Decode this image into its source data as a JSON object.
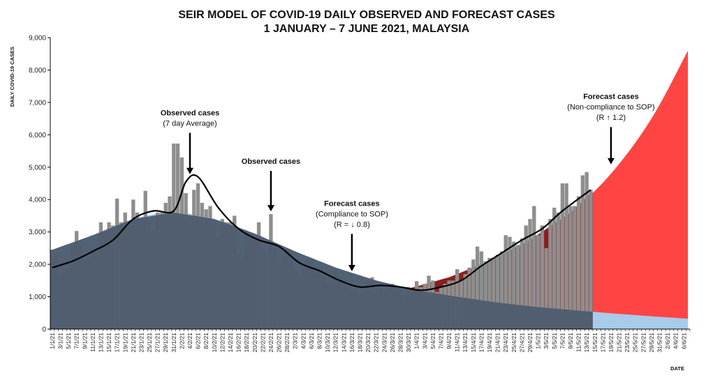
{
  "chart_data": {
    "type": "bar",
    "title_line1": "SEIR MODEL OF COVID-19 DAILY OBSERVED AND FORECAST CASES",
    "title_line2": "1 JANUARY  – 7 JUNE 2021, MALAYSIA",
    "ylabel": "DAILY COVID-19 CASES",
    "xlabel": "DATE",
    "ylim": [
      0,
      9000
    ],
    "yticks": [
      "0",
      "1,000",
      "2,000",
      "3,000",
      "4,000",
      "5,000",
      "6,000",
      "7,000",
      "8,000",
      "9,000"
    ],
    "x_start": "2021-01-01",
    "x_end": "2021-06-07",
    "x_tick_labels": [
      "1/1/21",
      "3/1/21",
      "5/1/21",
      "7/1/21",
      "9/1/21",
      "11/1/21",
      "13/1/21",
      "15/1/21",
      "17/1/21",
      "19/1/21",
      "21/1/21",
      "23/1/21",
      "25/1/21",
      "27/1/21",
      "29/1/21",
      "31/1/21",
      "2/2/21",
      "4/2/21",
      "6/2/21",
      "8/2/21",
      "10/2/21",
      "12/2/21",
      "14/2/21",
      "16/2/21",
      "18/2/21",
      "20/2/21",
      "22/2/21",
      "24/2/21",
      "26/2/21",
      "28/2/21",
      "2/3/21",
      "4/3/21",
      "6/3/21",
      "8/3/21",
      "10/3/21",
      "12/3/21",
      "14/3/21",
      "16/3/21",
      "18/3/21",
      "20/3/21",
      "22/3/21",
      "24/3/21",
      "26/3/21",
      "28/3/21",
      "30/3/21",
      "1/4/21",
      "3/4/21",
      "5/4/21",
      "7/4/21",
      "9/4/21",
      "11/4/21",
      "13/4/21",
      "15/4/21",
      "17/4/21",
      "19/4/21",
      "21/4/21",
      "23/4/21",
      "25/4/21",
      "27/4/21",
      "29/4/21",
      "1/5/21",
      "3/5/21",
      "5/5/21",
      "7/5/21",
      "9/5/21",
      "11/5/21",
      "13/5/21",
      "15/5/21",
      "17/5/21",
      "19/5/21",
      "21/5/21",
      "23/5/21",
      "25/5/21",
      "27/5/21",
      "29/5/21",
      "31/5/21",
      "2/6/21",
      "4/6/21",
      "6/6/21"
    ],
    "last_observed_date": "2021-05-14",
    "observed_daily": [
      {
        "x": "2021-01-01",
        "y": 2060
      },
      {
        "x": "2021-01-02",
        "y": 2300
      },
      {
        "x": "2021-01-03",
        "y": 1700
      },
      {
        "x": "2021-01-04",
        "y": 1740
      },
      {
        "x": "2021-01-05",
        "y": 1870
      },
      {
        "x": "2021-01-06",
        "y": 2600
      },
      {
        "x": "2021-01-07",
        "y": 3030
      },
      {
        "x": "2021-01-08",
        "y": 2640
      },
      {
        "x": "2021-01-09",
        "y": 2200
      },
      {
        "x": "2021-01-10",
        "y": 2200
      },
      {
        "x": "2021-01-11",
        "y": 2500
      },
      {
        "x": "2021-01-12",
        "y": 2300
      },
      {
        "x": "2021-01-13",
        "y": 3300
      },
      {
        "x": "2021-01-14",
        "y": 3000
      },
      {
        "x": "2021-01-15",
        "y": 3300
      },
      {
        "x": "2021-01-16",
        "y": 3200
      },
      {
        "x": "2021-01-17",
        "y": 4030
      },
      {
        "x": "2021-01-18",
        "y": 3300
      },
      {
        "x": "2021-01-19",
        "y": 3600
      },
      {
        "x": "2021-01-20",
        "y": 3170
      },
      {
        "x": "2021-01-21",
        "y": 4000
      },
      {
        "x": "2021-01-22",
        "y": 3600
      },
      {
        "x": "2021-01-23",
        "y": 3400
      },
      {
        "x": "2021-01-24",
        "y": 4270
      },
      {
        "x": "2021-01-25",
        "y": 3350
      },
      {
        "x": "2021-01-26",
        "y": 3050
      },
      {
        "x": "2021-01-27",
        "y": 3600
      },
      {
        "x": "2021-01-28",
        "y": 3600
      },
      {
        "x": "2021-01-29",
        "y": 3900
      },
      {
        "x": "2021-01-30",
        "y": 4100
      },
      {
        "x": "2021-01-31",
        "y": 5730
      },
      {
        "x": "2021-02-01",
        "y": 5730
      },
      {
        "x": "2021-02-02",
        "y": 5300
      },
      {
        "x": "2021-02-03",
        "y": 4200
      },
      {
        "x": "2021-02-04",
        "y": 3500
      },
      {
        "x": "2021-02-05",
        "y": 4300
      },
      {
        "x": "2021-02-06",
        "y": 4500
      },
      {
        "x": "2021-02-07",
        "y": 3900
      },
      {
        "x": "2021-02-08",
        "y": 3700
      },
      {
        "x": "2021-02-09",
        "y": 3800
      },
      {
        "x": "2021-02-10",
        "y": 3300
      },
      {
        "x": "2021-02-11",
        "y": 2800
      },
      {
        "x": "2021-02-12",
        "y": 3400
      },
      {
        "x": "2021-02-13",
        "y": 3300
      },
      {
        "x": "2021-02-14",
        "y": 3300
      },
      {
        "x": "2021-02-15",
        "y": 3500
      },
      {
        "x": "2021-02-16",
        "y": 2300
      },
      {
        "x": "2021-02-17",
        "y": 2200
      },
      {
        "x": "2021-02-18",
        "y": 3000
      },
      {
        "x": "2021-02-19",
        "y": 2800
      },
      {
        "x": "2021-02-20",
        "y": 2700
      },
      {
        "x": "2021-02-21",
        "y": 3300
      },
      {
        "x": "2021-02-22",
        "y": 2500
      },
      {
        "x": "2021-02-23",
        "y": 2300
      },
      {
        "x": "2021-02-24",
        "y": 3550
      },
      {
        "x": "2021-02-25",
        "y": 2500
      },
      {
        "x": "2021-02-26",
        "y": 2000
      },
      {
        "x": "2021-02-27",
        "y": 2300
      },
      {
        "x": "2021-02-28",
        "y": 2400
      },
      {
        "x": "2021-03-01",
        "y": 2200
      },
      {
        "x": "2021-03-02",
        "y": 1800
      },
      {
        "x": "2021-03-03",
        "y": 1600
      },
      {
        "x": "2021-03-04",
        "y": 1900
      },
      {
        "x": "2021-03-05",
        "y": 2150
      },
      {
        "x": "2021-03-06",
        "y": 2150
      },
      {
        "x": "2021-03-07",
        "y": 1700
      },
      {
        "x": "2021-03-08",
        "y": 1800
      },
      {
        "x": "2021-03-09",
        "y": 1650
      },
      {
        "x": "2021-03-10",
        "y": 1400
      },
      {
        "x": "2021-03-11",
        "y": 1600
      },
      {
        "x": "2021-03-12",
        "y": 1800
      },
      {
        "x": "2021-03-13",
        "y": 1600
      },
      {
        "x": "2021-03-14",
        "y": 1500
      },
      {
        "x": "2021-03-15",
        "y": 1300
      },
      {
        "x": "2021-03-16",
        "y": 1200
      },
      {
        "x": "2021-03-17",
        "y": 1300
      },
      {
        "x": "2021-03-18",
        "y": 1100
      },
      {
        "x": "2021-03-19",
        "y": 1150
      },
      {
        "x": "2021-03-20",
        "y": 1450
      },
      {
        "x": "2021-03-21",
        "y": 1600
      },
      {
        "x": "2021-03-22",
        "y": 1400
      },
      {
        "x": "2021-03-23",
        "y": 1300
      },
      {
        "x": "2021-03-24",
        "y": 1200
      },
      {
        "x": "2021-03-25",
        "y": 1400
      },
      {
        "x": "2021-03-26",
        "y": 1400
      },
      {
        "x": "2021-03-27",
        "y": 1300
      },
      {
        "x": "2021-03-28",
        "y": 1300
      },
      {
        "x": "2021-03-29",
        "y": 950
      },
      {
        "x": "2021-03-30",
        "y": 1300
      },
      {
        "x": "2021-03-31",
        "y": 1150
      },
      {
        "x": "2021-04-01",
        "y": 1480
      },
      {
        "x": "2021-04-02",
        "y": 1300
      },
      {
        "x": "2021-04-03",
        "y": 1400
      },
      {
        "x": "2021-04-04",
        "y": 1650
      },
      {
        "x": "2021-04-05",
        "y": 1500
      },
      {
        "x": "2021-04-06",
        "y": 1150
      },
      {
        "x": "2021-04-07",
        "y": 1300
      },
      {
        "x": "2021-04-08",
        "y": 1400
      },
      {
        "x": "2021-04-09",
        "y": 1500
      },
      {
        "x": "2021-04-10",
        "y": 1500
      },
      {
        "x": "2021-04-11",
        "y": 1850
      },
      {
        "x": "2021-04-12",
        "y": 1500
      },
      {
        "x": "2021-04-13",
        "y": 1700
      },
      {
        "x": "2021-04-14",
        "y": 1900
      },
      {
        "x": "2021-04-15",
        "y": 2150
      },
      {
        "x": "2021-04-16",
        "y": 2550
      },
      {
        "x": "2021-04-17",
        "y": 2400
      },
      {
        "x": "2021-04-18",
        "y": 2100
      },
      {
        "x": "2021-04-19",
        "y": 2200
      },
      {
        "x": "2021-04-20",
        "y": 2200
      },
      {
        "x": "2021-04-21",
        "y": 2300
      },
      {
        "x": "2021-04-22",
        "y": 2400
      },
      {
        "x": "2021-04-23",
        "y": 2900
      },
      {
        "x": "2021-04-24",
        "y": 2850
      },
      {
        "x": "2021-04-25",
        "y": 2700
      },
      {
        "x": "2021-04-26",
        "y": 2600
      },
      {
        "x": "2021-04-27",
        "y": 2800
      },
      {
        "x": "2021-04-28",
        "y": 3200
      },
      {
        "x": "2021-04-29",
        "y": 3400
      },
      {
        "x": "2021-04-30",
        "y": 3800
      },
      {
        "x": "2021-05-01",
        "y": 2900
      },
      {
        "x": "2021-05-02",
        "y": 3200
      },
      {
        "x": "2021-05-03",
        "y": 2500
      },
      {
        "x": "2021-05-04",
        "y": 3400
      },
      {
        "x": "2021-05-05",
        "y": 3750
      },
      {
        "x": "2021-05-06",
        "y": 3600
      },
      {
        "x": "2021-05-07",
        "y": 4500
      },
      {
        "x": "2021-05-08",
        "y": 4500
      },
      {
        "x": "2021-05-09",
        "y": 3800
      },
      {
        "x": "2021-05-10",
        "y": 3800
      },
      {
        "x": "2021-05-11",
        "y": 4100
      },
      {
        "x": "2021-05-12",
        "y": 4750
      },
      {
        "x": "2021-05-13",
        "y": 4850
      },
      {
        "x": "2021-05-14",
        "y": 4300
      }
    ],
    "seven_day_average": [
      {
        "x": "2021-01-01",
        "y": 1900
      },
      {
        "x": "2021-01-06",
        "y": 2100
      },
      {
        "x": "2021-01-11",
        "y": 2400
      },
      {
        "x": "2021-01-16",
        "y": 2750
      },
      {
        "x": "2021-01-21",
        "y": 3400
      },
      {
        "x": "2021-01-26",
        "y": 3650
      },
      {
        "x": "2021-01-31",
        "y": 3650
      },
      {
        "x": "2021-02-03",
        "y": 4550
      },
      {
        "x": "2021-02-06",
        "y": 4700
      },
      {
        "x": "2021-02-11",
        "y": 3750
      },
      {
        "x": "2021-02-16",
        "y": 3100
      },
      {
        "x": "2021-02-21",
        "y": 2750
      },
      {
        "x": "2021-02-26",
        "y": 2550
      },
      {
        "x": "2021-03-03",
        "y": 2050
      },
      {
        "x": "2021-03-08",
        "y": 1800
      },
      {
        "x": "2021-03-13",
        "y": 1500
      },
      {
        "x": "2021-03-18",
        "y": 1300
      },
      {
        "x": "2021-03-23",
        "y": 1350
      },
      {
        "x": "2021-03-28",
        "y": 1300
      },
      {
        "x": "2021-04-02",
        "y": 1200
      },
      {
        "x": "2021-04-07",
        "y": 1300
      },
      {
        "x": "2021-04-12",
        "y": 1500
      },
      {
        "x": "2021-04-17",
        "y": 1950
      },
      {
        "x": "2021-04-22",
        "y": 2350
      },
      {
        "x": "2021-04-27",
        "y": 2750
      },
      {
        "x": "2021-05-02",
        "y": 3100
      },
      {
        "x": "2021-05-07",
        "y": 3650
      },
      {
        "x": "2021-05-14",
        "y": 4300
      }
    ],
    "forecast_compliance": [
      {
        "x": "2021-01-01",
        "y": 2450
      },
      {
        "x": "2021-01-11",
        "y": 2900
      },
      {
        "x": "2021-01-21",
        "y": 3400
      },
      {
        "x": "2021-01-31",
        "y": 3600
      },
      {
        "x": "2021-02-10",
        "y": 3400
      },
      {
        "x": "2021-02-20",
        "y": 2950
      },
      {
        "x": "2021-03-02",
        "y": 2400
      },
      {
        "x": "2021-03-12",
        "y": 1900
      },
      {
        "x": "2021-03-22",
        "y": 1500
      },
      {
        "x": "2021-04-01",
        "y": 1200
      },
      {
        "x": "2021-04-11",
        "y": 1000
      },
      {
        "x": "2021-04-21",
        "y": 820
      },
      {
        "x": "2021-05-01",
        "y": 680
      },
      {
        "x": "2021-05-11",
        "y": 570
      },
      {
        "x": "2021-05-21",
        "y": 470
      },
      {
        "x": "2021-05-31",
        "y": 380
      },
      {
        "x": "2021-06-07",
        "y": 320
      }
    ],
    "forecast_noncompliance": [
      {
        "x": "2021-03-30",
        "y": 1250
      },
      {
        "x": "2021-04-09",
        "y": 1600
      },
      {
        "x": "2021-04-19",
        "y": 2100
      },
      {
        "x": "2021-04-29",
        "y": 2750
      },
      {
        "x": "2021-05-09",
        "y": 3600
      },
      {
        "x": "2021-05-19",
        "y": 4800
      },
      {
        "x": "2021-05-29",
        "y": 6500
      },
      {
        "x": "2021-06-07",
        "y": 8600
      }
    ],
    "annotations": [
      {
        "title": "Observed cases",
        "lines": [
          "(7 day Average)"
        ],
        "x": "2021-02-04",
        "y": 4700,
        "label_y": 6600
      },
      {
        "title": "Observed cases",
        "lines": [],
        "x": "2021-02-24",
        "y": 3550,
        "label_y": 5100
      },
      {
        "title": "Forecast cases",
        "lines": [
          "(Compliance to SOP)",
          "(R = ↓ 0.8)"
        ],
        "x": "2021-03-16",
        "y": 1700,
        "label_y": 3800
      },
      {
        "title": "Forecast cases",
        "lines": [
          "(Non-compliance to SOP)",
          "(R ↑ 1.2)"
        ],
        "x": "2021-05-19",
        "y": 5000,
        "label_y": 7100
      }
    ],
    "colors": {
      "compliance_area": "#a8cbea",
      "noncompliance_area": "#ff4444",
      "noncompliance_overlap": "#8b1e1e",
      "observed_bars": "#8e8e8e",
      "observed_area": "#4f5d70",
      "average_line": "#000000"
    },
    "grid": false,
    "legend": "none"
  }
}
